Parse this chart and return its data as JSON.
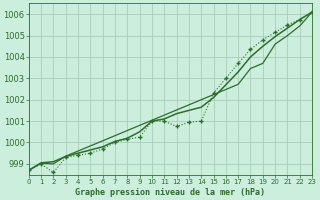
{
  "title": "Graphe pression niveau de la mer (hPa)",
  "background_color": "#cceedd",
  "grid_color": "#aaccbb",
  "line_color": "#2d6e2d",
  "xlim": [
    0,
    23
  ],
  "ylim": [
    998.5,
    1006.5
  ],
  "xticks": [
    0,
    1,
    2,
    3,
    4,
    5,
    6,
    7,
    8,
    9,
    10,
    11,
    12,
    13,
    14,
    15,
    16,
    17,
    18,
    19,
    20,
    21,
    22,
    23
  ],
  "yticks": [
    999,
    1000,
    1001,
    1002,
    1003,
    1004,
    1005,
    1006
  ],
  "x": [
    0,
    1,
    2,
    3,
    4,
    5,
    6,
    7,
    8,
    9,
    10,
    11,
    12,
    13,
    14,
    15,
    16,
    17,
    18,
    19,
    20,
    21,
    22,
    23
  ],
  "y_actual": [
    998.7,
    999.0,
    998.6,
    999.3,
    999.4,
    999.5,
    999.7,
    1000.0,
    1000.15,
    1000.25,
    1001.0,
    1001.0,
    1000.75,
    1000.95,
    1001.0,
    1002.3,
    1003.0,
    1003.7,
    1004.35,
    1004.8,
    1005.15,
    1005.5,
    1005.75,
    1006.1
  ],
  "y_smooth": [
    998.7,
    999.05,
    999.1,
    999.35,
    999.5,
    999.65,
    999.8,
    1000.05,
    1000.2,
    1000.5,
    1001.0,
    1001.1,
    1001.35,
    1001.5,
    1001.65,
    1002.1,
    1002.7,
    1003.3,
    1004.0,
    1004.5,
    1004.95,
    1005.35,
    1005.75,
    1006.1
  ],
  "y_linear": [
    998.7,
    999.03,
    999.0,
    999.36,
    999.6,
    999.84,
    1000.08,
    1000.32,
    1000.56,
    1000.8,
    1001.04,
    1001.28,
    1001.52,
    1001.76,
    1002.0,
    1002.24,
    1002.48,
    1002.72,
    1003.46,
    1003.7,
    1004.6,
    1005.0,
    1005.45,
    1006.1
  ]
}
